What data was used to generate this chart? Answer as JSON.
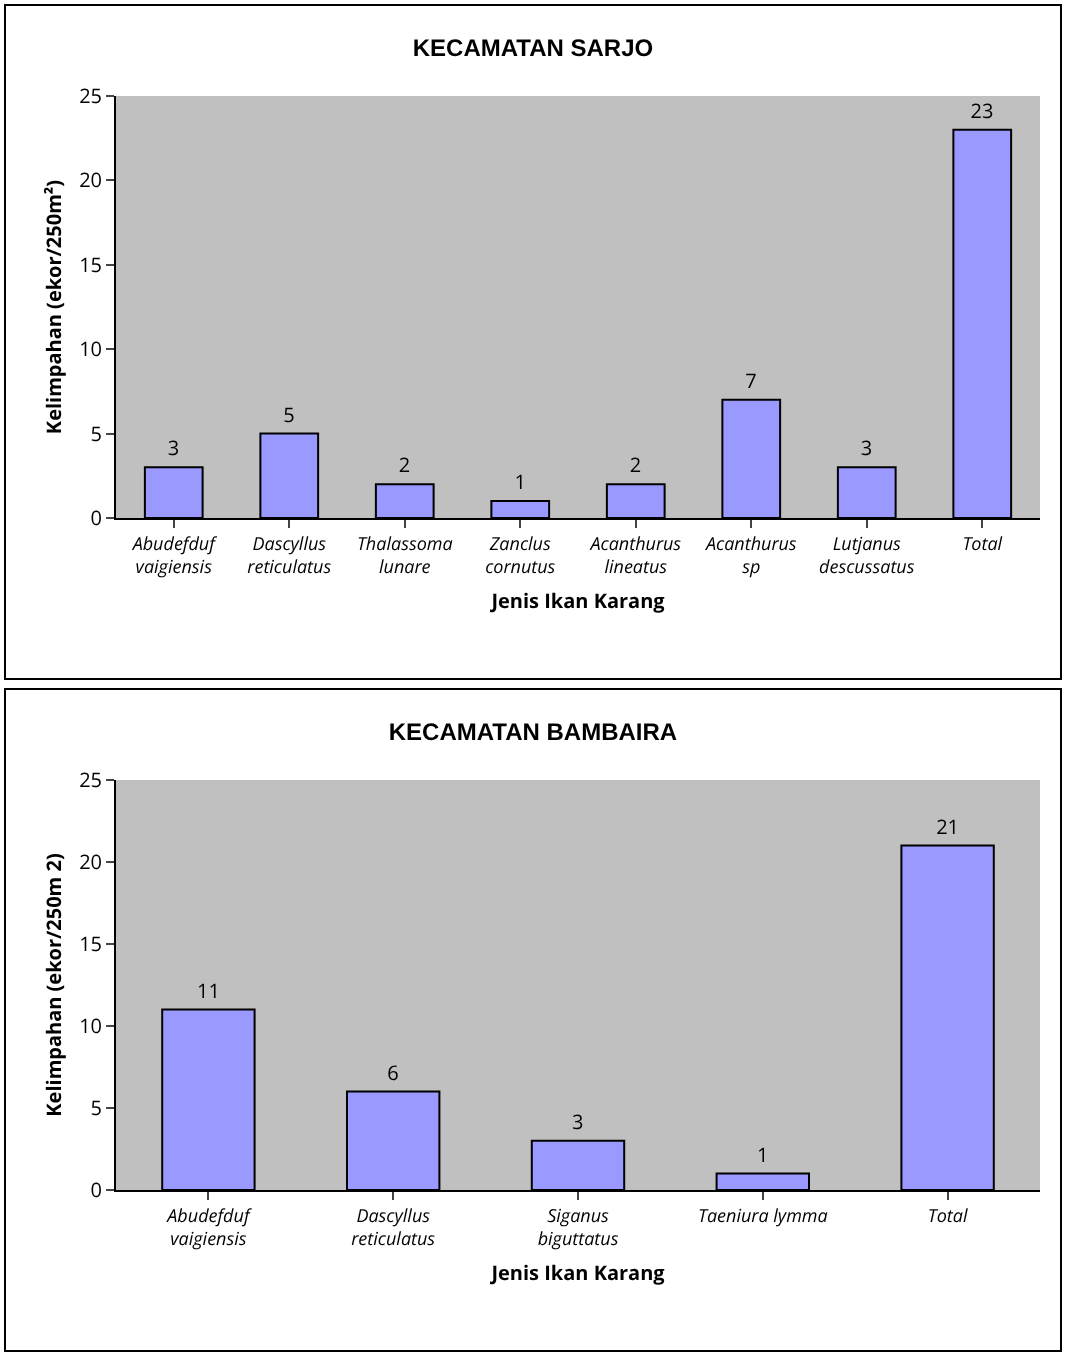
{
  "chart_data": [
    {
      "type": "bar",
      "title": "KECAMATAN SARJO",
      "xlabel": "Jenis Ikan Karang",
      "ylabel": "Kelimpahan (ekor/250m²)",
      "categories": [
        "Abudefduf vaigiensis",
        "Dascyllus reticulatus",
        "Thalassoma lunare",
        "Zanclus cornutus",
        "Acanthurus lineatus",
        "Acanthurus sp",
        "Lutjanus descussatus",
        "Total"
      ],
      "values": [
        3,
        5,
        2,
        1,
        2,
        7,
        3,
        23
      ],
      "color": "#9999ff",
      "ylim": [
        0,
        25
      ],
      "yticks": [
        0,
        5,
        10,
        15,
        20,
        25
      ],
      "grid": false,
      "legend": false,
      "data_labels": true
    },
    {
      "type": "bar",
      "title": "KECAMATAN BAMBAIRA",
      "xlabel": "Jenis Ikan Karang",
      "ylabel": "Kelimpahan (ekor/250m 2)",
      "categories": [
        "Abudefduf vaigiensis",
        "Dascyllus reticulatus",
        "Siganus biguttatus",
        "Taeniura lymma",
        "Total"
      ],
      "values": [
        11,
        6,
        3,
        1,
        21
      ],
      "color": "#9999ff",
      "ylim": [
        0,
        25
      ],
      "yticks": [
        0,
        5,
        10,
        15,
        20,
        25
      ],
      "grid": false,
      "legend": false,
      "data_labels": true
    }
  ]
}
